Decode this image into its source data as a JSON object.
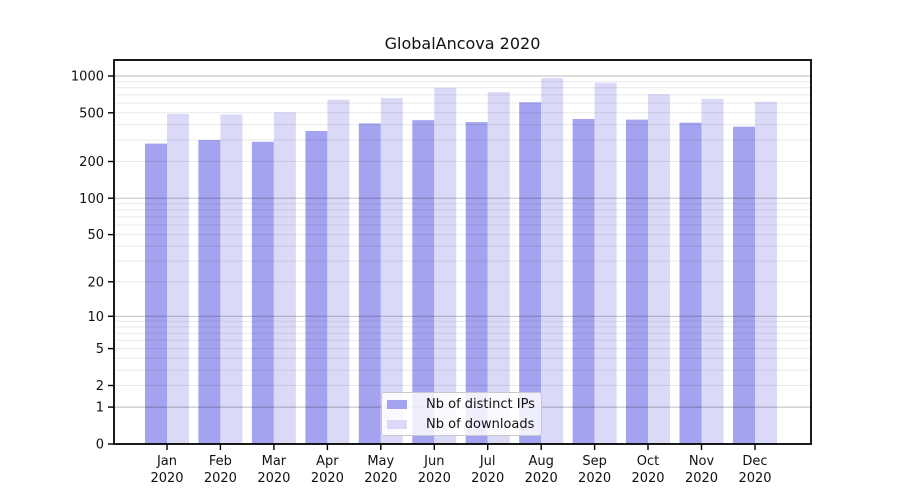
{
  "chart_data": {
    "type": "bar",
    "title": "GlobalAncova 2020",
    "categories": [
      "Jan",
      "Feb",
      "Mar",
      "Apr",
      "May",
      "Jun",
      "Jul",
      "Aug",
      "Sep",
      "Oct",
      "Nov",
      "Dec"
    ],
    "xtick_year": "2020",
    "series": [
      {
        "name": "Nb of distinct IPs",
        "color": "#a3a3f0",
        "values": [
          280,
          300,
          290,
          355,
          410,
          435,
          420,
          610,
          445,
          440,
          415,
          385
        ]
      },
      {
        "name": "Nb of downloads",
        "color": "#dadaf8",
        "values": [
          490,
          485,
          505,
          640,
          660,
          800,
          740,
          960,
          880,
          710,
          650,
          615
        ]
      }
    ],
    "yticks": [
      0,
      1,
      2,
      5,
      10,
      20,
      50,
      100,
      200,
      500,
      1000
    ],
    "yscale": "log1p",
    "ylim": [
      0,
      1350
    ],
    "grid": {
      "major": [
        1,
        10,
        100,
        1000
      ],
      "minor_decades": [
        1,
        10,
        100
      ],
      "minor_multipliers": [
        2,
        3,
        4,
        5,
        6,
        7,
        8,
        9
      ],
      "major_color": "rgba(0,0,0,0.22)",
      "minor_color": "rgba(0,0,0,0.085)"
    },
    "legend_position": "bottom-center",
    "frame_color": "#000000",
    "background_color": "#ffffff"
  }
}
